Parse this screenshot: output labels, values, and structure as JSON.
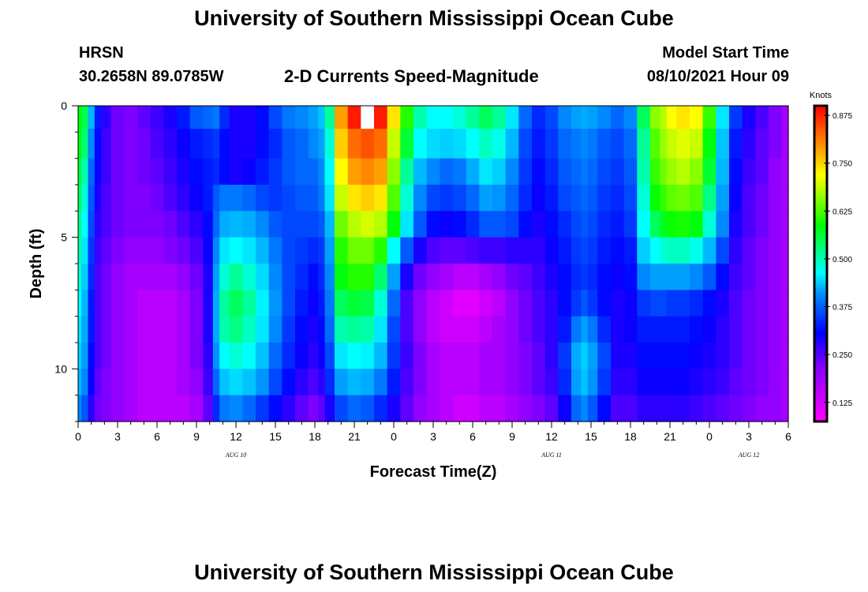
{
  "page": {
    "title_top": "University of Southern Mississippi Ocean Cube",
    "title_bottom": "University of Southern Mississippi Ocean Cube",
    "station": "HRSN",
    "coords": "30.2658N  89.0785W",
    "plot_title": "2-D Currents Speed-Magnitude",
    "model_start_label": "Model Start Time",
    "model_start_value": "08/10/2021 Hour 09"
  },
  "chart_data": {
    "type": "heatmap",
    "title": "2-D Currents Speed-Magnitude",
    "xlabel": "Forecast Time(Z)",
    "ylabel": "Depth (ft)",
    "colorbar_label": "Knots",
    "colorbar_ticks": [
      "0.875",
      "0.750",
      "0.625",
      "0.500",
      "0.375",
      "0.250",
      "0.125"
    ],
    "colorbar_range": [
      0.075,
      0.9
    ],
    "x_tick_labels": [
      "0",
      "3",
      "6",
      "9",
      "12",
      "15",
      "18",
      "21",
      "0",
      "3",
      "6",
      "9",
      "12",
      "15",
      "18",
      "21",
      "0",
      "3",
      "6"
    ],
    "x_range_hours": [
      0,
      54
    ],
    "date_labels": [
      {
        "text": "AUG  10",
        "hour": 12
      },
      {
        "text": "AUG  11",
        "hour": 36
      },
      {
        "text": "AUG  12",
        "hour": 51
      }
    ],
    "y_tick_labels": [
      "0",
      "5",
      "10"
    ],
    "y_range_ft": [
      0,
      12
    ],
    "depths_ft": [
      0.25,
      1.5,
      2.5,
      3.5,
      4.5,
      5.5,
      6.5,
      7.5,
      8.5,
      9.5,
      10.5,
      11.5
    ],
    "column_hours": [
      0.0,
      0.5,
      1.0,
      1.5,
      2.0,
      3.0,
      4.0,
      5.0,
      6.0,
      7.0,
      8.0,
      9.0,
      10.0,
      10.5,
      11.0,
      12.0,
      13.0,
      14.0,
      15.0,
      16.0,
      17.0,
      18.0,
      18.5,
      19.0,
      20.0,
      21.0,
      22.0,
      23.0,
      24.0,
      25.0,
      26.0,
      27.0,
      28.0,
      29.0,
      30.0,
      31.0,
      32.0,
      33.0,
      34.0,
      35.0,
      36.0,
      37.0,
      38.0,
      38.5,
      39.0,
      40.0,
      41.0,
      42.0,
      43.0,
      44.0,
      44.5,
      45.0,
      46.0,
      47.0,
      48.0,
      49.0,
      50.0,
      51.0,
      52.0,
      53.0,
      54.0
    ],
    "speed_knots": [
      [
        0.52,
        0.49,
        0.34,
        0.23,
        0.19,
        0.15,
        0.14,
        0.16,
        0.18,
        0.2,
        0.23,
        0.27,
        0.28,
        0.29,
        0.24,
        0.2,
        0.2,
        0.22,
        0.26,
        0.29,
        0.3,
        0.32,
        0.35,
        0.45,
        0.78,
        0.88,
        0.9,
        0.88,
        0.72,
        0.55,
        0.44,
        0.4,
        0.4,
        0.42,
        0.45,
        0.48,
        0.45,
        0.38,
        0.28,
        0.24,
        0.26,
        0.3,
        0.32,
        0.33,
        0.32,
        0.3,
        0.28,
        0.3,
        0.48,
        0.62,
        0.65,
        0.7,
        0.72,
        0.7,
        0.56,
        0.38,
        0.25,
        0.2,
        0.17,
        0.14,
        0.12
      ],
      [
        0.52,
        0.47,
        0.3,
        0.22,
        0.18,
        0.15,
        0.14,
        0.15,
        0.17,
        0.19,
        0.21,
        0.23,
        0.24,
        0.25,
        0.22,
        0.2,
        0.2,
        0.22,
        0.24,
        0.27,
        0.28,
        0.3,
        0.32,
        0.42,
        0.74,
        0.82,
        0.84,
        0.82,
        0.66,
        0.5,
        0.4,
        0.37,
        0.36,
        0.37,
        0.4,
        0.43,
        0.41,
        0.34,
        0.26,
        0.23,
        0.25,
        0.28,
        0.29,
        0.3,
        0.29,
        0.27,
        0.26,
        0.28,
        0.45,
        0.58,
        0.63,
        0.66,
        0.68,
        0.66,
        0.52,
        0.35,
        0.23,
        0.19,
        0.16,
        0.14,
        0.12
      ],
      [
        0.5,
        0.44,
        0.28,
        0.21,
        0.18,
        0.15,
        0.14,
        0.15,
        0.16,
        0.18,
        0.2,
        0.22,
        0.23,
        0.24,
        0.22,
        0.2,
        0.21,
        0.23,
        0.25,
        0.27,
        0.28,
        0.28,
        0.3,
        0.4,
        0.7,
        0.78,
        0.8,
        0.78,
        0.62,
        0.45,
        0.34,
        0.3,
        0.28,
        0.29,
        0.33,
        0.38,
        0.36,
        0.3,
        0.25,
        0.22,
        0.24,
        0.27,
        0.28,
        0.29,
        0.28,
        0.26,
        0.25,
        0.27,
        0.44,
        0.56,
        0.6,
        0.63,
        0.65,
        0.62,
        0.5,
        0.34,
        0.22,
        0.18,
        0.16,
        0.13,
        0.12
      ],
      [
        0.48,
        0.42,
        0.27,
        0.2,
        0.17,
        0.15,
        0.14,
        0.14,
        0.15,
        0.17,
        0.19,
        0.21,
        0.23,
        0.27,
        0.29,
        0.29,
        0.28,
        0.26,
        0.25,
        0.26,
        0.27,
        0.27,
        0.29,
        0.38,
        0.66,
        0.72,
        0.74,
        0.72,
        0.58,
        0.42,
        0.3,
        0.26,
        0.25,
        0.26,
        0.28,
        0.32,
        0.31,
        0.28,
        0.24,
        0.21,
        0.23,
        0.26,
        0.27,
        0.28,
        0.27,
        0.25,
        0.24,
        0.26,
        0.42,
        0.53,
        0.56,
        0.59,
        0.6,
        0.58,
        0.46,
        0.32,
        0.21,
        0.17,
        0.15,
        0.13,
        0.12
      ],
      [
        0.46,
        0.4,
        0.26,
        0.19,
        0.17,
        0.15,
        0.14,
        0.14,
        0.14,
        0.15,
        0.17,
        0.19,
        0.22,
        0.28,
        0.33,
        0.34,
        0.33,
        0.3,
        0.27,
        0.26,
        0.26,
        0.26,
        0.27,
        0.34,
        0.6,
        0.65,
        0.67,
        0.65,
        0.52,
        0.38,
        0.27,
        0.22,
        0.21,
        0.22,
        0.24,
        0.27,
        0.27,
        0.26,
        0.22,
        0.2,
        0.22,
        0.24,
        0.26,
        0.27,
        0.26,
        0.24,
        0.23,
        0.25,
        0.4,
        0.48,
        0.51,
        0.53,
        0.54,
        0.52,
        0.42,
        0.3,
        0.2,
        0.17,
        0.15,
        0.13,
        0.12
      ],
      [
        0.44,
        0.38,
        0.25,
        0.18,
        0.16,
        0.14,
        0.13,
        0.13,
        0.13,
        0.14,
        0.15,
        0.17,
        0.21,
        0.3,
        0.38,
        0.4,
        0.38,
        0.34,
        0.29,
        0.26,
        0.25,
        0.24,
        0.25,
        0.32,
        0.55,
        0.6,
        0.6,
        0.55,
        0.4,
        0.27,
        0.2,
        0.17,
        0.16,
        0.16,
        0.17,
        0.18,
        0.18,
        0.19,
        0.19,
        0.19,
        0.21,
        0.23,
        0.25,
        0.26,
        0.25,
        0.23,
        0.22,
        0.23,
        0.36,
        0.4,
        0.42,
        0.43,
        0.43,
        0.41,
        0.34,
        0.26,
        0.19,
        0.16,
        0.14,
        0.13,
        0.12
      ],
      [
        0.42,
        0.36,
        0.24,
        0.17,
        0.15,
        0.13,
        0.12,
        0.12,
        0.12,
        0.12,
        0.13,
        0.15,
        0.2,
        0.32,
        0.42,
        0.45,
        0.42,
        0.37,
        0.3,
        0.26,
        0.24,
        0.22,
        0.24,
        0.3,
        0.52,
        0.55,
        0.55,
        0.47,
        0.32,
        0.2,
        0.15,
        0.13,
        0.12,
        0.11,
        0.11,
        0.12,
        0.13,
        0.15,
        0.16,
        0.18,
        0.2,
        0.22,
        0.24,
        0.25,
        0.24,
        0.22,
        0.21,
        0.22,
        0.3,
        0.32,
        0.32,
        0.32,
        0.32,
        0.3,
        0.27,
        0.22,
        0.18,
        0.16,
        0.14,
        0.13,
        0.12
      ],
      [
        0.4,
        0.34,
        0.23,
        0.17,
        0.15,
        0.13,
        0.12,
        0.11,
        0.11,
        0.11,
        0.12,
        0.14,
        0.2,
        0.33,
        0.45,
        0.48,
        0.45,
        0.39,
        0.31,
        0.26,
        0.23,
        0.21,
        0.23,
        0.29,
        0.48,
        0.5,
        0.49,
        0.42,
        0.28,
        0.17,
        0.13,
        0.11,
        0.1,
        0.09,
        0.09,
        0.1,
        0.11,
        0.13,
        0.15,
        0.17,
        0.19,
        0.22,
        0.25,
        0.27,
        0.25,
        0.22,
        0.2,
        0.21,
        0.25,
        0.26,
        0.26,
        0.25,
        0.25,
        0.24,
        0.22,
        0.2,
        0.17,
        0.15,
        0.14,
        0.13,
        0.12
      ],
      [
        0.38,
        0.33,
        0.23,
        0.17,
        0.15,
        0.13,
        0.12,
        0.11,
        0.11,
        0.11,
        0.12,
        0.14,
        0.2,
        0.33,
        0.44,
        0.46,
        0.43,
        0.38,
        0.3,
        0.25,
        0.22,
        0.2,
        0.22,
        0.28,
        0.44,
        0.45,
        0.44,
        0.38,
        0.26,
        0.17,
        0.13,
        0.11,
        0.1,
        0.1,
        0.1,
        0.11,
        0.12,
        0.13,
        0.15,
        0.17,
        0.19,
        0.23,
        0.29,
        0.32,
        0.29,
        0.24,
        0.2,
        0.21,
        0.23,
        0.23,
        0.23,
        0.23,
        0.23,
        0.22,
        0.21,
        0.19,
        0.17,
        0.15,
        0.14,
        0.13,
        0.12
      ],
      [
        0.36,
        0.32,
        0.22,
        0.17,
        0.15,
        0.13,
        0.12,
        0.11,
        0.11,
        0.11,
        0.12,
        0.14,
        0.19,
        0.31,
        0.4,
        0.42,
        0.4,
        0.35,
        0.28,
        0.24,
        0.21,
        0.19,
        0.21,
        0.26,
        0.38,
        0.4,
        0.39,
        0.34,
        0.25,
        0.18,
        0.14,
        0.12,
        0.11,
        0.11,
        0.11,
        0.12,
        0.12,
        0.13,
        0.14,
        0.16,
        0.19,
        0.25,
        0.33,
        0.36,
        0.32,
        0.26,
        0.2,
        0.2,
        0.22,
        0.22,
        0.22,
        0.22,
        0.22,
        0.21,
        0.2,
        0.19,
        0.17,
        0.15,
        0.14,
        0.13,
        0.12
      ],
      [
        0.34,
        0.3,
        0.21,
        0.16,
        0.14,
        0.13,
        0.12,
        0.11,
        0.11,
        0.11,
        0.12,
        0.13,
        0.18,
        0.28,
        0.35,
        0.37,
        0.35,
        0.31,
        0.26,
        0.22,
        0.19,
        0.17,
        0.19,
        0.24,
        0.32,
        0.34,
        0.33,
        0.29,
        0.23,
        0.17,
        0.14,
        0.12,
        0.11,
        0.11,
        0.11,
        0.12,
        0.12,
        0.13,
        0.14,
        0.16,
        0.18,
        0.24,
        0.32,
        0.35,
        0.31,
        0.25,
        0.19,
        0.19,
        0.21,
        0.21,
        0.21,
        0.21,
        0.21,
        0.2,
        0.19,
        0.18,
        0.16,
        0.15,
        0.14,
        0.13,
        0.12
      ],
      [
        0.3,
        0.27,
        0.19,
        0.15,
        0.14,
        0.13,
        0.12,
        0.11,
        0.11,
        0.11,
        0.11,
        0.12,
        0.16,
        0.24,
        0.29,
        0.3,
        0.28,
        0.25,
        0.22,
        0.19,
        0.16,
        0.14,
        0.16,
        0.2,
        0.26,
        0.28,
        0.27,
        0.24,
        0.2,
        0.16,
        0.13,
        0.12,
        0.11,
        0.1,
        0.1,
        0.11,
        0.11,
        0.12,
        0.13,
        0.14,
        0.16,
        0.21,
        0.28,
        0.3,
        0.27,
        0.22,
        0.17,
        0.17,
        0.19,
        0.19,
        0.19,
        0.19,
        0.19,
        0.18,
        0.17,
        0.16,
        0.15,
        0.14,
        0.13,
        0.13,
        0.12
      ]
    ]
  }
}
